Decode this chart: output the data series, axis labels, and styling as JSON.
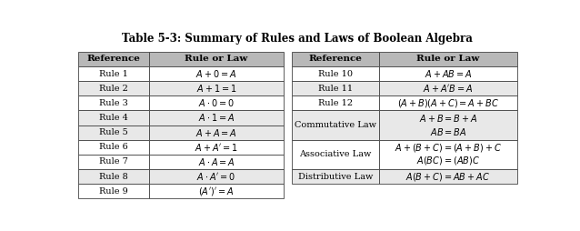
{
  "title": "Table 5-3: Summary of Rules and Laws of Boolean Algebra",
  "title_fontsize": 8.5,
  "header_bg": "#b8b8b8",
  "row_bg_light": "#e8e8e8",
  "row_bg_white": "#ffffff",
  "border_color": "#444444",
  "text_color": "#000000",
  "left_headers": [
    "Reference",
    "Rule or Law"
  ],
  "right_headers": [
    "Reference",
    "Rule or Law"
  ],
  "left_rows": [
    [
      "Rule 1",
      "$A+0=A$"
    ],
    [
      "Rule 2",
      "$A+1=1$"
    ],
    [
      "Rule 3",
      "$A \\cdot 0=0$"
    ],
    [
      "Rule 4",
      "$A \\cdot 1=A$"
    ],
    [
      "Rule 5",
      "$A+A=A$"
    ],
    [
      "Rule 6",
      "$A+A'=1$"
    ],
    [
      "Rule 7",
      "$A \\cdot A=A$"
    ],
    [
      "Rule 8",
      "$A \\cdot A'=0$"
    ],
    [
      "Rule 9",
      "$(A')'=A$"
    ]
  ],
  "left_row_colors": [
    "#ffffff",
    "#e8e8e8",
    "#ffffff",
    "#e8e8e8",
    "#e8e8e8",
    "#ffffff",
    "#ffffff",
    "#e8e8e8",
    "#ffffff"
  ],
  "right_sections": [
    {
      "ref": "Rule 10",
      "span": 1,
      "bg": "#ffffff",
      "rule_lines": [
        "$A+AB=A$"
      ]
    },
    {
      "ref": "Rule 11",
      "span": 1,
      "bg": "#e8e8e8",
      "rule_lines": [
        "$A+A'B=A$"
      ]
    },
    {
      "ref": "Rule 12",
      "span": 1,
      "bg": "#ffffff",
      "rule_lines": [
        "$(A+B)(A+C)=A+BC$"
      ]
    },
    {
      "ref": "Commutative Law",
      "span": 2,
      "bg": "#e8e8e8",
      "rule_lines": [
        "$A+B=B+A$",
        "$AB=BA$"
      ]
    },
    {
      "ref": "Associative Law",
      "span": 2,
      "bg": "#ffffff",
      "rule_lines": [
        "$A+(B+C)=(A+B)+C$",
        "$A(BC)=(AB)C$"
      ]
    },
    {
      "ref": "Distributive Law",
      "span": 1,
      "bg": "#e8e8e8",
      "rule_lines": [
        "$A(B+C)=AB+AC$"
      ]
    }
  ],
  "figsize": [
    6.38,
    2.54
  ],
  "dpi": 100
}
